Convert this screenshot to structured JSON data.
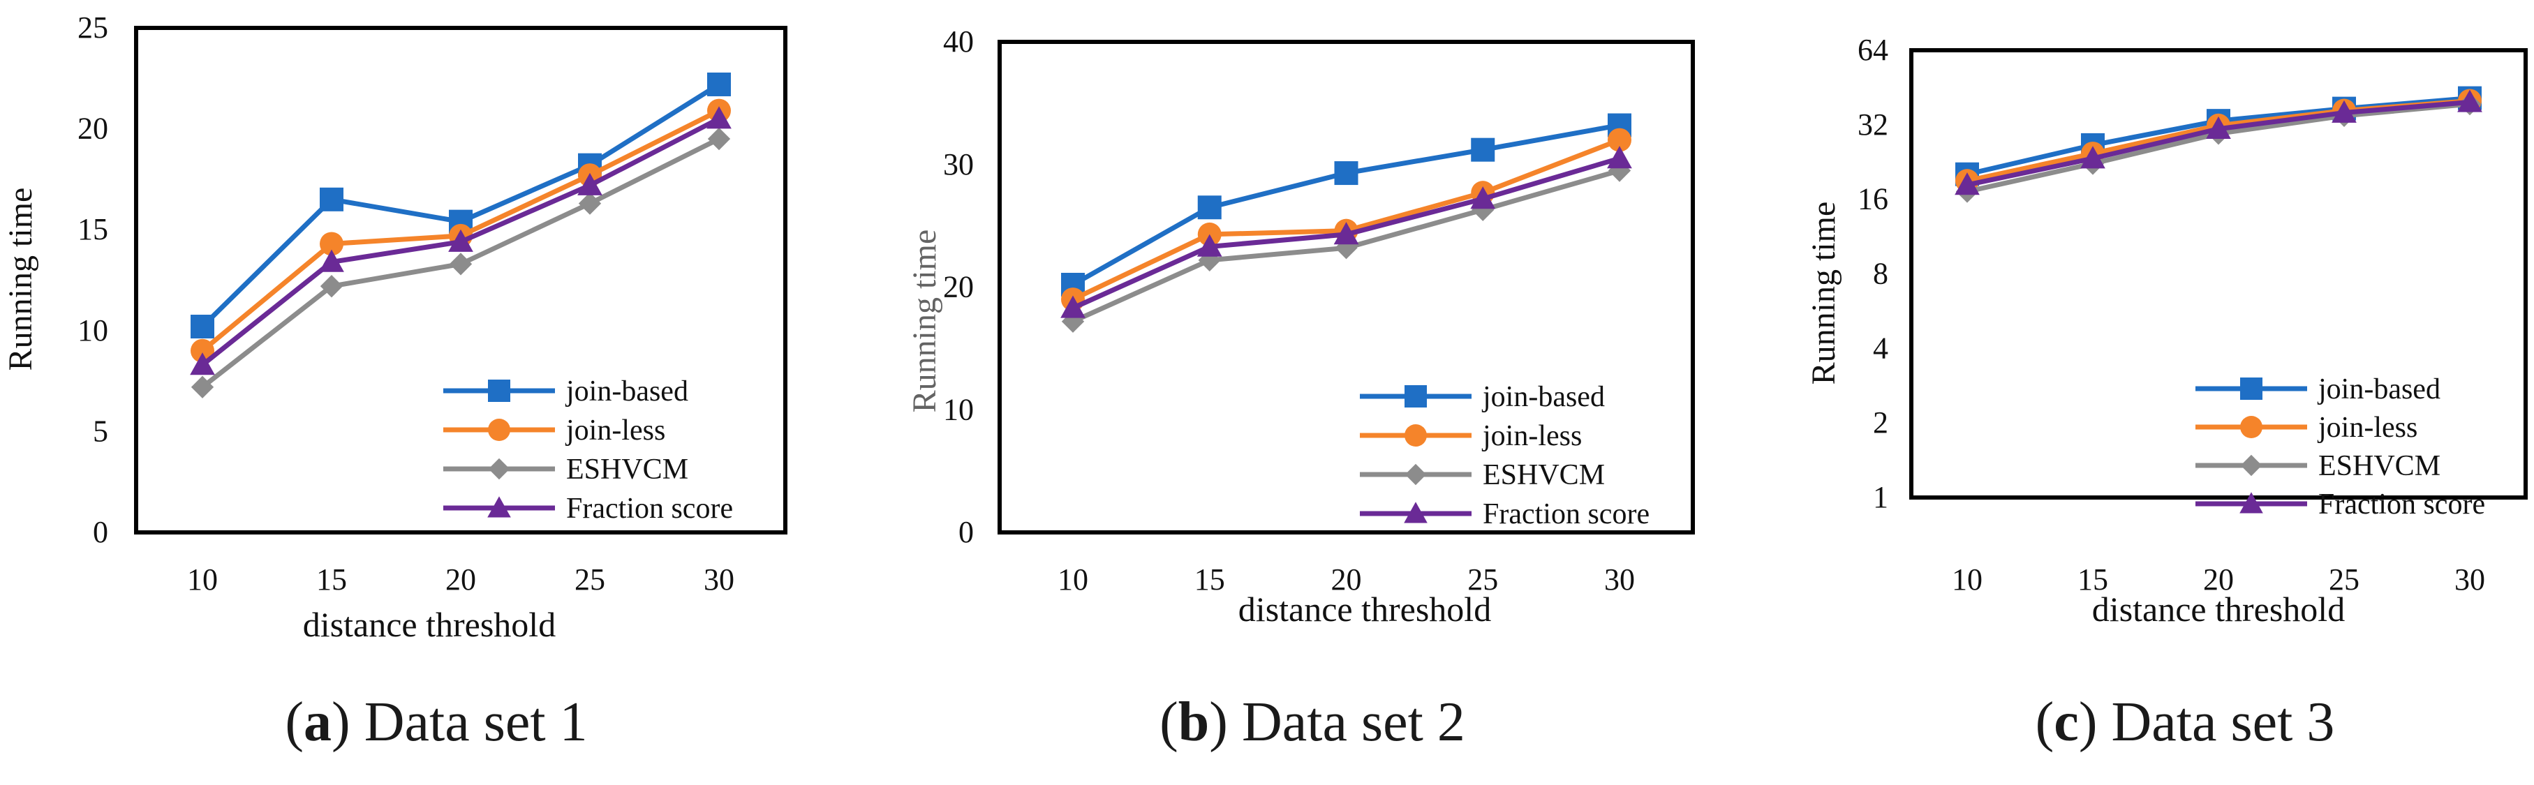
{
  "colors": {
    "join_based": "#1f6fc5",
    "join_less": "#f5842a",
    "eshvcm": "#8c8c8c",
    "fraction_score": "#6a2a96",
    "frame": "#000000"
  },
  "captions": [
    {
      "letter": "a",
      "open": "(",
      "close": ")",
      "text": " Data set 1"
    },
    {
      "letter": "b",
      "open": "(",
      "close": ")",
      "text": " Data set 2"
    },
    {
      "letter": "c",
      "open": "(",
      "close": ")",
      "text": " Data set 3"
    }
  ],
  "chart_data": [
    {
      "type": "line",
      "scale": "linear",
      "title": "",
      "xlabel": "distance threshold",
      "ylabel": "Running time",
      "categories": [
        "10",
        "15",
        "20",
        "25",
        "30"
      ],
      "ylim": [
        0,
        25
      ],
      "yticks": [
        0,
        5,
        10,
        15,
        20,
        25
      ],
      "ytick_labels": [
        "0",
        "5",
        "10",
        "15",
        "20",
        "25"
      ],
      "legend_position": "bottom-right",
      "series": [
        {
          "name": "join-based",
          "marker": "square",
          "values": [
            10.2,
            16.5,
            15.4,
            18.2,
            22.2
          ]
        },
        {
          "name": "join-less",
          "marker": "circle",
          "values": [
            9.0,
            14.3,
            14.7,
            17.7,
            20.9
          ]
        },
        {
          "name": "ESHVCM",
          "marker": "diamond",
          "values": [
            7.2,
            12.2,
            13.3,
            16.3,
            19.5
          ]
        },
        {
          "name": "Fraction score",
          "marker": "triangle",
          "values": [
            8.3,
            13.4,
            14.4,
            17.2,
            20.5
          ]
        }
      ]
    },
    {
      "type": "line",
      "scale": "linear",
      "title": "",
      "xlabel": "distance threshold",
      "ylabel": "Running time",
      "categories": [
        "10",
        "15",
        "20",
        "25",
        "30"
      ],
      "ylim": [
        0,
        40
      ],
      "yticks": [
        0,
        10,
        20,
        30,
        40
      ],
      "ytick_labels": [
        "0",
        "10",
        "20",
        "30",
        "40"
      ],
      "legend_position": "bottom-right",
      "series": [
        {
          "name": "join-based",
          "marker": "square",
          "values": [
            20.2,
            26.5,
            29.3,
            31.2,
            33.2
          ]
        },
        {
          "name": "join-less",
          "marker": "circle",
          "values": [
            19.0,
            24.3,
            24.6,
            27.7,
            32.0
          ]
        },
        {
          "name": "ESHVCM",
          "marker": "diamond",
          "values": [
            17.2,
            22.2,
            23.2,
            26.3,
            29.5
          ]
        },
        {
          "name": "Fraction score",
          "marker": "triangle",
          "values": [
            18.3,
            23.3,
            24.3,
            27.2,
            30.5
          ]
        }
      ]
    },
    {
      "type": "line",
      "scale": "log2",
      "title": "",
      "xlabel": "distance threshold",
      "ylabel": "Running time",
      "categories": [
        "10",
        "15",
        "20",
        "25",
        "30"
      ],
      "ylim": [
        1,
        64
      ],
      "yticks": [
        1,
        2,
        4,
        8,
        16,
        32,
        64
      ],
      "ytick_labels": [
        "1",
        "2",
        "4",
        "8",
        "16",
        "32",
        "64"
      ],
      "legend_position": "bottom-right",
      "series": [
        {
          "name": "join-based",
          "marker": "square",
          "values": [
            20.2,
            26.5,
            33.2,
            37.2,
            41.0
          ]
        },
        {
          "name": "join-less",
          "marker": "circle",
          "values": [
            19.0,
            24.5,
            31.8,
            36.5,
            40.0
          ]
        },
        {
          "name": "ESHVCM",
          "marker": "diamond",
          "values": [
            17.2,
            22.3,
            29.5,
            34.8,
            38.8
          ]
        },
        {
          "name": "Fraction score",
          "marker": "triangle",
          "values": [
            18.3,
            23.4,
            30.8,
            35.8,
            39.5
          ]
        }
      ]
    }
  ]
}
